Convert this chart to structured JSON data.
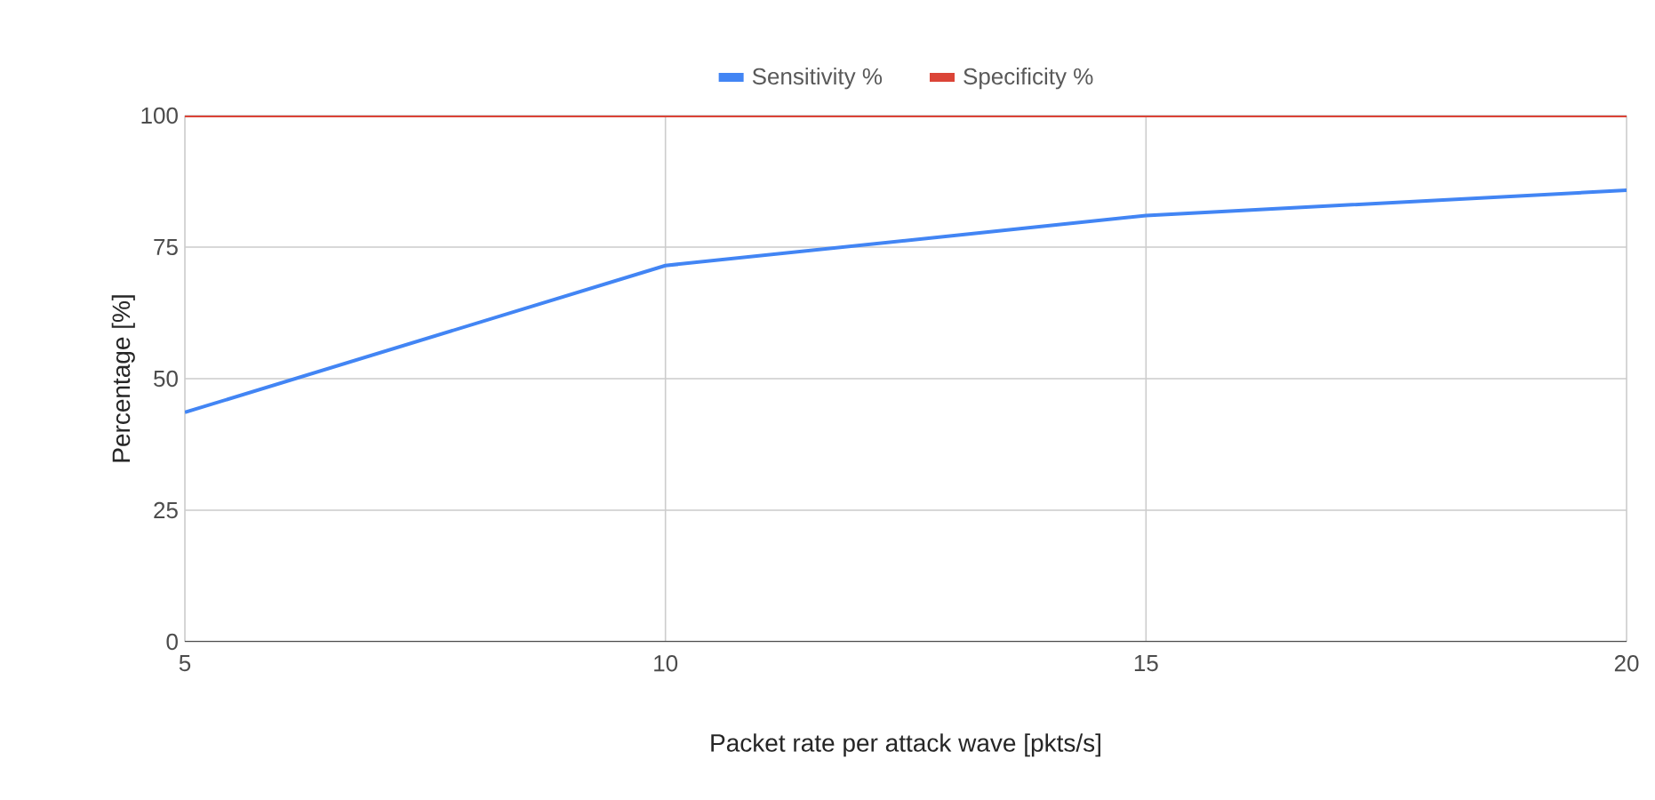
{
  "chart_data": {
    "type": "line",
    "xlabel": "Packet rate per attack wave [pkts/s]",
    "ylabel": "Percentage [%]",
    "x": [
      5,
      10,
      15,
      20
    ],
    "series": [
      {
        "name": "Sensitivity %",
        "color": "#4285f4",
        "values": [
          43.6,
          71.5,
          81,
          85.8
        ]
      },
      {
        "name": "Specificity %",
        "color": "#db4437",
        "values": [
          100,
          100,
          100,
          100
        ]
      }
    ],
    "xlim": [
      5,
      20
    ],
    "xticks": [
      5,
      10,
      15,
      20
    ],
    "ylim": [
      0,
      100
    ],
    "yticks": [
      0,
      25,
      50,
      75,
      100
    ],
    "grid": true,
    "legend": "top",
    "marker": "none",
    "line_style": "solid"
  }
}
